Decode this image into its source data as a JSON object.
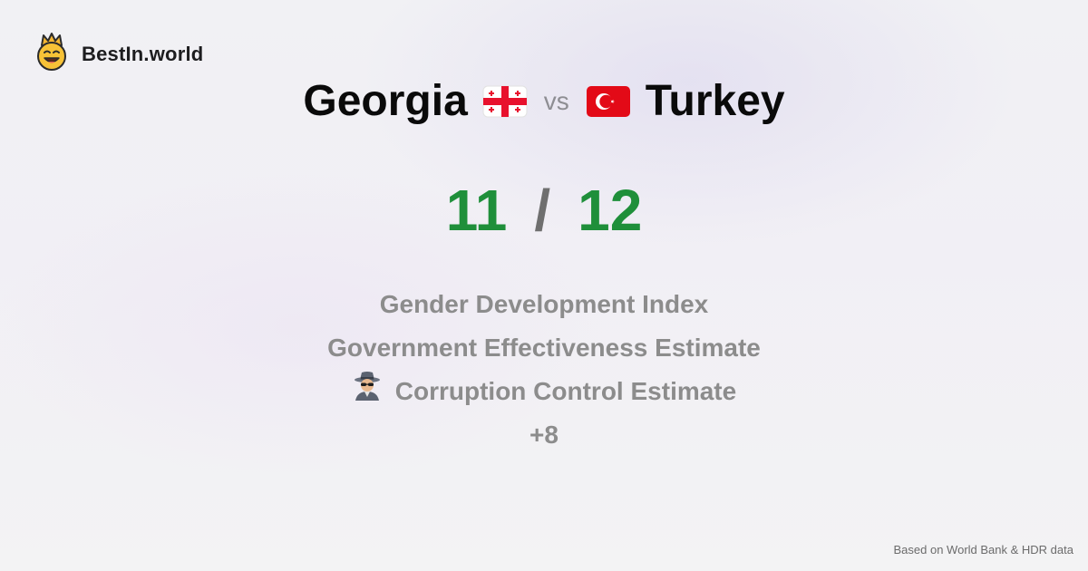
{
  "brand": {
    "name": "BestIn.world",
    "logo_icon": "crown-smiley-icon"
  },
  "comparison": {
    "left_country": "Georgia",
    "right_country": "Turkey",
    "vs_label": "vs",
    "left_flag_icon": "georgia-flag-icon",
    "right_flag_icon": "turkey-flag-icon"
  },
  "score": {
    "left": "11",
    "separator": "/",
    "right": "12",
    "color": "#1f8f3a"
  },
  "metrics": [
    {
      "label": "Gender Development Index"
    },
    {
      "label": "Government Effectiveness Estimate"
    },
    {
      "label": "Corruption Control Estimate",
      "icon": "detective-icon"
    }
  ],
  "more_label": "+8",
  "footer": {
    "source_text": "Based on World Bank & HDR data"
  }
}
